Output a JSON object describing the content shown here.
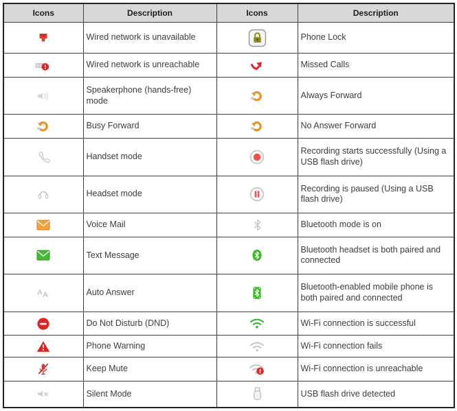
{
  "table": {
    "headers": [
      "Icons",
      "Description",
      "Icons",
      "Description"
    ],
    "rows": [
      {
        "left_icon": "wired-network-unavailable-icon",
        "left_description": "Wired network is unavailable",
        "right_icon": "phone-lock-icon",
        "right_description": "Phone Lock"
      },
      {
        "left_icon": "wired-network-unreachable-icon",
        "left_description": "Wired network is unreachable",
        "right_icon": "missed-calls-icon",
        "right_description": "Missed Calls"
      },
      {
        "left_icon": "speakerphone-mode-icon",
        "left_description": "Speakerphone (hands-free) mode",
        "right_icon": "always-forward-icon",
        "right_description": "Always Forward"
      },
      {
        "left_icon": "busy-forward-icon",
        "left_description": "Busy Forward",
        "right_icon": "no-answer-forward-icon",
        "right_description": "No Answer Forward"
      },
      {
        "left_icon": "handset-mode-icon",
        "left_description": "Handset mode",
        "right_icon": "recording-started-icon",
        "right_description": "Recording starts successfully (Using a USB flash drive)"
      },
      {
        "left_icon": "headset-mode-icon",
        "left_description": "Headset mode",
        "right_icon": "recording-paused-icon",
        "right_description": "Recording is paused (Using a USB flash drive)"
      },
      {
        "left_icon": "voice-mail-icon",
        "left_description": "Voice Mail",
        "right_icon": "bluetooth-on-icon",
        "right_description": "Bluetooth mode is on"
      },
      {
        "left_icon": "text-message-icon",
        "left_description": "Text Message",
        "right_icon": "bluetooth-headset-icon",
        "right_description": "Bluetooth headset is both paired and connected"
      },
      {
        "left_icon": "auto-answer-icon",
        "left_description": "Auto Answer",
        "right_icon": "bluetooth-phone-icon",
        "right_description": "Bluetooth-enabled mobile phone is both paired and connected"
      },
      {
        "left_icon": "do-not-disturb-icon",
        "left_description": "Do Not Disturb (DND)",
        "right_icon": "wifi-success-icon",
        "right_description": "Wi-Fi connection is successful"
      },
      {
        "left_icon": "phone-warning-icon",
        "left_description": "Phone Warning",
        "right_icon": "wifi-fail-icon",
        "right_description": "Wi-Fi connection fails"
      },
      {
        "left_icon": "keep-mute-icon",
        "left_description": "Keep Mute",
        "right_icon": "wifi-unreachable-icon",
        "right_description": "Wi-Fi connection is unreachable"
      },
      {
        "left_icon": "silent-mode-icon",
        "left_description": "Silent Mode",
        "right_icon": "usb-flash-drive-icon",
        "right_description": "USB flash drive detected"
      }
    ]
  },
  "colors": {
    "header_bg": "#d8d8d8",
    "border": "#3c3c3c",
    "red": "#e02828",
    "orange": "#e89427",
    "green": "#3eba25",
    "gray_icon": "#c9c9c9",
    "lock_olive": "#8f8f1f"
  }
}
